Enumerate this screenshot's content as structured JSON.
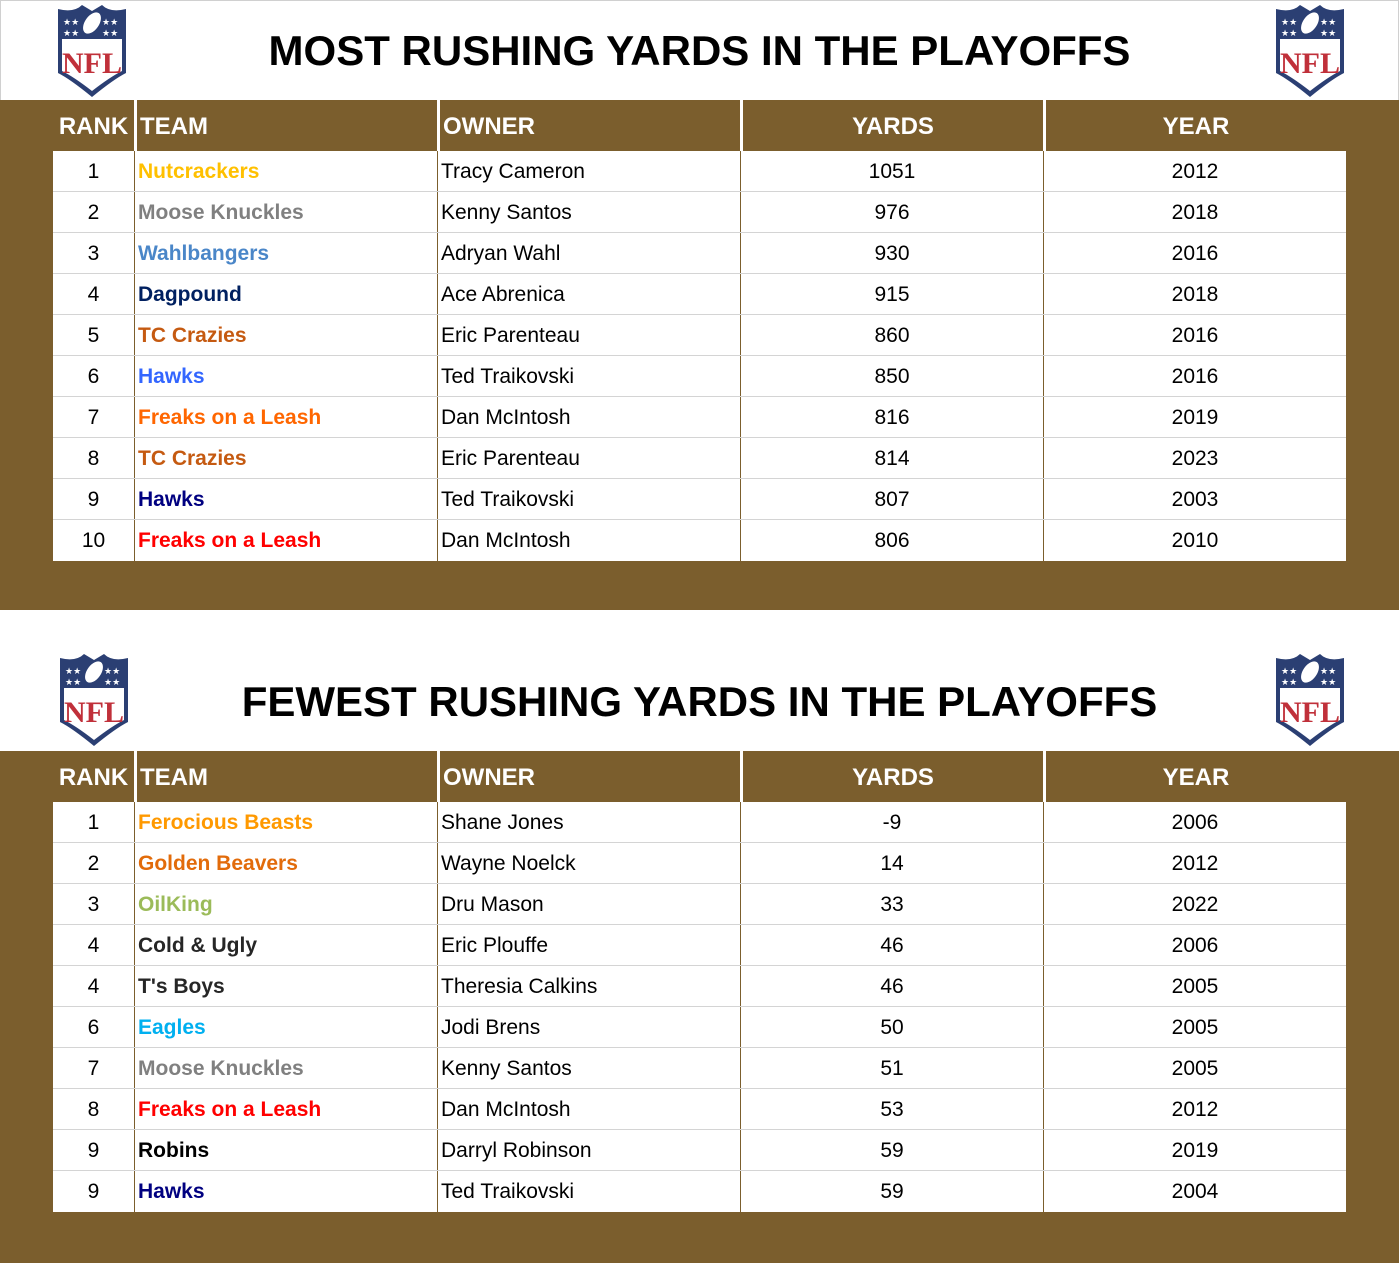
{
  "most": {
    "title": "MOST RUSHING YARDS IN THE PLAYOFFS",
    "logo": "NFL",
    "headers": [
      "RANK",
      "TEAM",
      "OWNER",
      "YARDS",
      "YEAR"
    ],
    "rows": [
      {
        "rank": "1",
        "team": "Nutcrackers",
        "color": "#FFC000",
        "owner": "Tracy Cameron",
        "yards": "1051",
        "year": "2012"
      },
      {
        "rank": "2",
        "team": "Moose Knuckles",
        "color": "#808080",
        "owner": "Kenny Santos",
        "yards": "976",
        "year": "2018"
      },
      {
        "rank": "3",
        "team": "Wahlbangers",
        "color": "#4A86C8",
        "owner": "Adryan Wahl",
        "yards": "930",
        "year": "2016"
      },
      {
        "rank": "4",
        "team": "Dagpound",
        "color": "#002060",
        "owner": "Ace Abrenica",
        "yards": "915",
        "year": "2018"
      },
      {
        "rank": "5",
        "team": "TC Crazies",
        "color": "#C55A11",
        "owner": "Eric Parenteau",
        "yards": "860",
        "year": "2016"
      },
      {
        "rank": "6",
        "team": "Hawks",
        "color": "#3366FF",
        "owner": "Ted Traikovski",
        "yards": "850",
        "year": "2016"
      },
      {
        "rank": "7",
        "team": "Freaks on a Leash",
        "color": "#FF6600",
        "owner": "Dan McIntosh",
        "yards": "816",
        "year": "2019"
      },
      {
        "rank": "8",
        "team": "TC Crazies",
        "color": "#C55A11",
        "owner": "Eric Parenteau",
        "yards": "814",
        "year": "2023"
      },
      {
        "rank": "9",
        "team": "Hawks",
        "color": "#000080",
        "owner": "Ted Traikovski",
        "yards": "807",
        "year": "2003"
      },
      {
        "rank": "10",
        "team": "Freaks on a Leash",
        "color": "#FF0000",
        "owner": "Dan McIntosh",
        "yards": "806",
        "year": "2010"
      }
    ]
  },
  "fewest": {
    "title": "FEWEST RUSHING YARDS IN THE PLAYOFFS",
    "logo": "NFL",
    "headers": [
      "RANK",
      "TEAM",
      "OWNER",
      "YARDS",
      "YEAR"
    ],
    "rows": [
      {
        "rank": "1",
        "team": "Ferocious Beasts",
        "color": "#FF9900",
        "owner": "Shane Jones",
        "yards": "-9",
        "year": "2006"
      },
      {
        "rank": "2",
        "team": "Golden Beavers",
        "color": "#E26B0A",
        "owner": "Wayne Noelck",
        "yards": "14",
        "year": "2012"
      },
      {
        "rank": "3",
        "team": "OilKing",
        "color": "#9BBB59",
        "owner": "Dru Mason",
        "yards": "33",
        "year": "2022"
      },
      {
        "rank": "4",
        "team": "Cold & Ugly",
        "color": "#262626",
        "owner": "Eric Plouffe",
        "yards": "46",
        "year": "2006"
      },
      {
        "rank": "4",
        "team": "T's Boys",
        "color": "#262626",
        "owner": "Theresia Calkins",
        "yards": "46",
        "year": "2005"
      },
      {
        "rank": "6",
        "team": "Eagles",
        "color": "#00B0F0",
        "owner": "Jodi Brens",
        "yards": "50",
        "year": "2005"
      },
      {
        "rank": "7",
        "team": "Moose Knuckles",
        "color": "#808080",
        "owner": "Kenny Santos",
        "yards": "51",
        "year": "2005"
      },
      {
        "rank": "8",
        "team": "Freaks on a Leash",
        "color": "#FF0000",
        "owner": "Dan McIntosh",
        "yards": "53",
        "year": "2012"
      },
      {
        "rank": "9",
        "team": "Robins",
        "color": "#000000",
        "owner": "Darryl Robinson",
        "yards": "59",
        "year": "2019"
      },
      {
        "rank": "9",
        "team": "Hawks",
        "color": "#000080",
        "owner": "Ted Traikovski",
        "yards": "59",
        "year": "2004"
      }
    ]
  },
  "colors": {
    "header_bg": "#7B5E2D",
    "logo_blue": "#2B3F73",
    "logo_red": "#C0303A"
  }
}
